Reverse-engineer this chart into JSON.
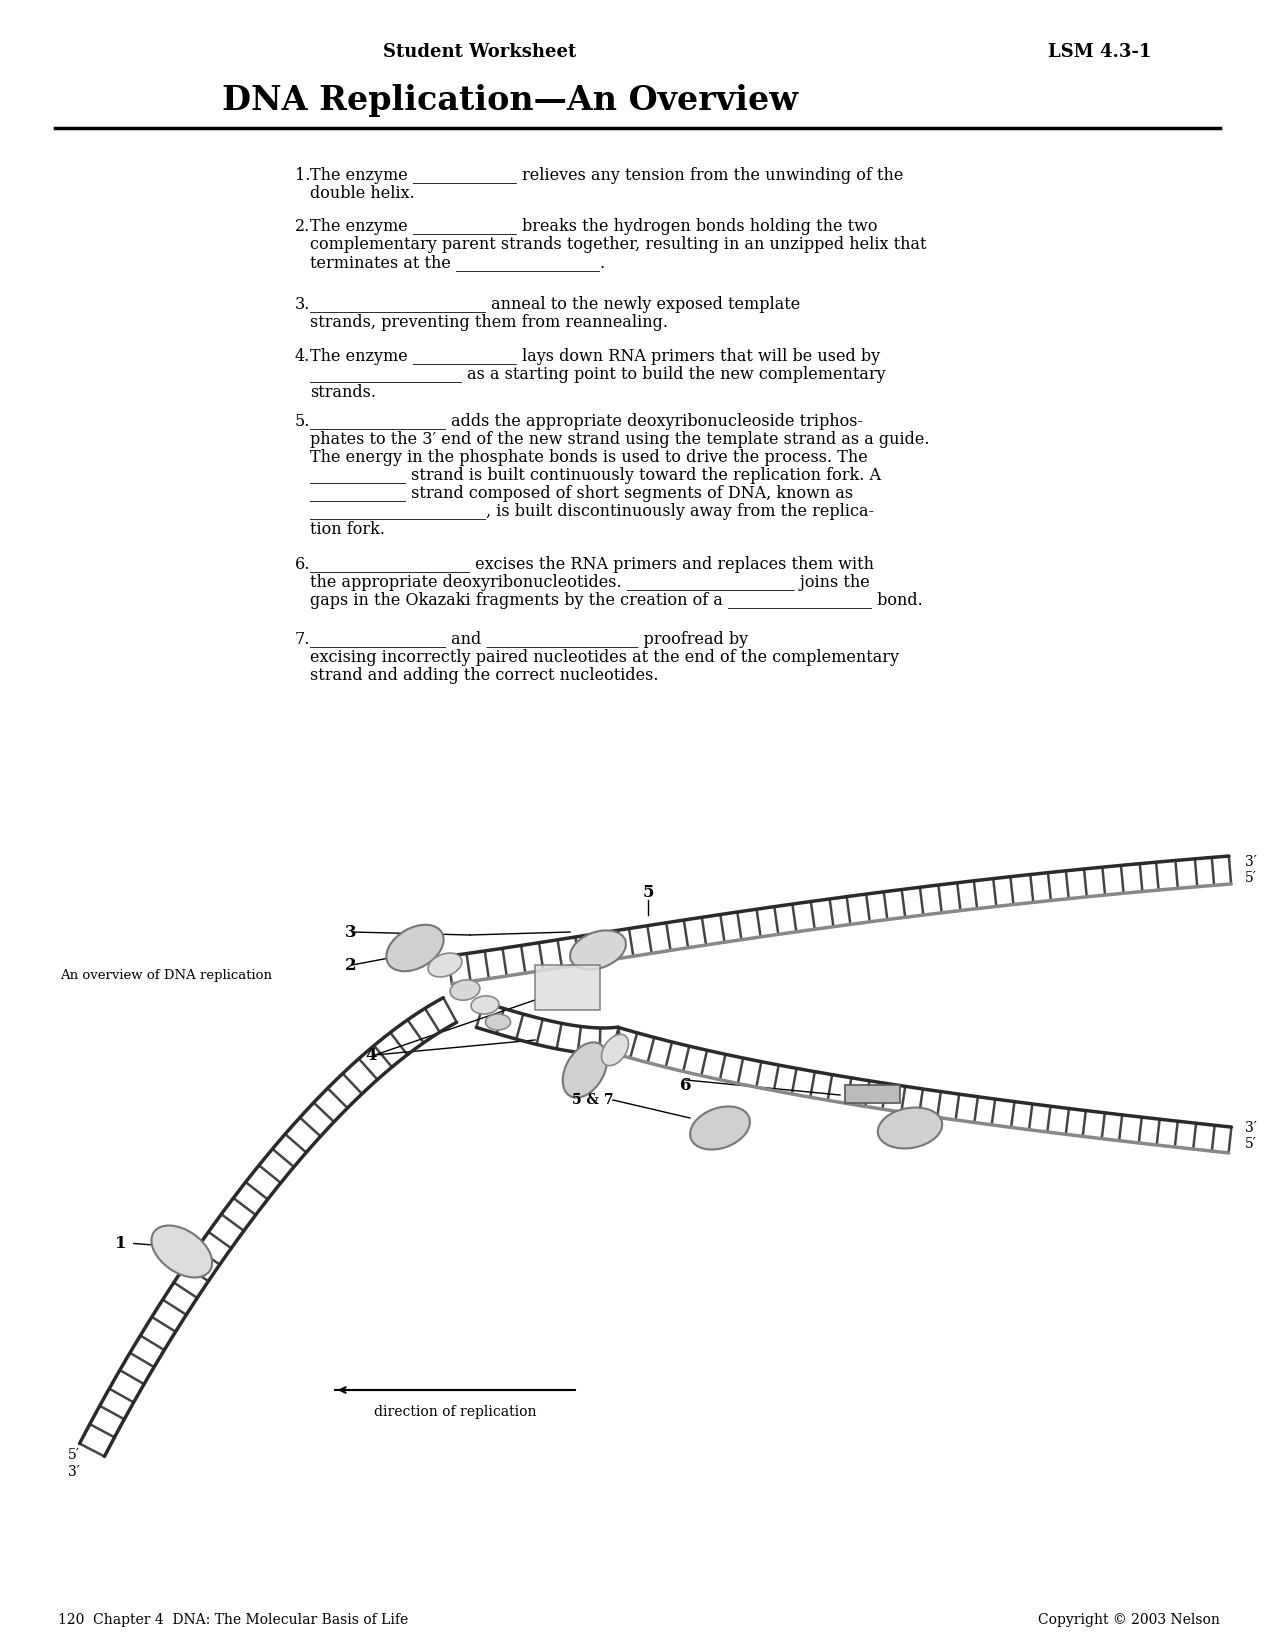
{
  "bg_color": "#ffffff",
  "header_left": "Student Worksheet",
  "header_right": "LSM 4.3-1",
  "title": "DNA Replication—An Overview",
  "q1": "1.  The enzyme _____________ relieves any tension from the unwinding of the\n    double helix.",
  "q2": "2.  The enzyme _____________ breaks the hydrogen bonds holding the two\n    complementary parent strands together, resulting in an unzipped helix that\n    terminates at the __________________.",
  "q3": "3.  ______________________ anneal to the newly exposed template\n    strands, preventing them from reannealing.",
  "q4": "4.  The enzyme _____________ lays down RNA primers that will be used by\n    ___________________ as a starting point to build the new complementary\n    strands.",
  "q5a": "5.  _________________ adds the appropriate deoxyribonucleoside triphos-",
  "q5b": "    phates to the 3′ end of the new strand using the template strand as a guide.",
  "q5c": "    The energy in the phosphate bonds is used to drive the process. The",
  "q5d": "    ____________ strand is built continuously toward the replication fork. A",
  "q5e": "    ____________ strand composed of short segments of DNA, known as",
  "q5f": "    ______________________, is built discontinuously away from the replica-",
  "q5g": "    tion fork.",
  "q6": "6.  ____________________ excises the RNA primers and replaces them with\n    the appropriate deoxyribonucleotides. _____________________ joins the\n    gaps in the Okazaki fragments by the creation of a __________________ bond.",
  "q7": "7.  _________________ and ___________________ proofread by\n    excising incorrectly paired nucleotides at the end of the complementary\n    strand and adding the correct nucleotides.",
  "footer_left": "120  Chapter 4  DNA: The Molecular Basis of Life",
  "footer_right": "Copyright © 2003 Nelson",
  "diagram_label": "An overview of DNA replication",
  "direction_label": "direction of replication",
  "dna_strand_color": "#333333",
  "dna_rung_color": "#555555",
  "dna_gray_color": "#888888",
  "protein_light": "#cccccc",
  "protein_mid": "#aaaaaa",
  "protein_dark": "#888888"
}
